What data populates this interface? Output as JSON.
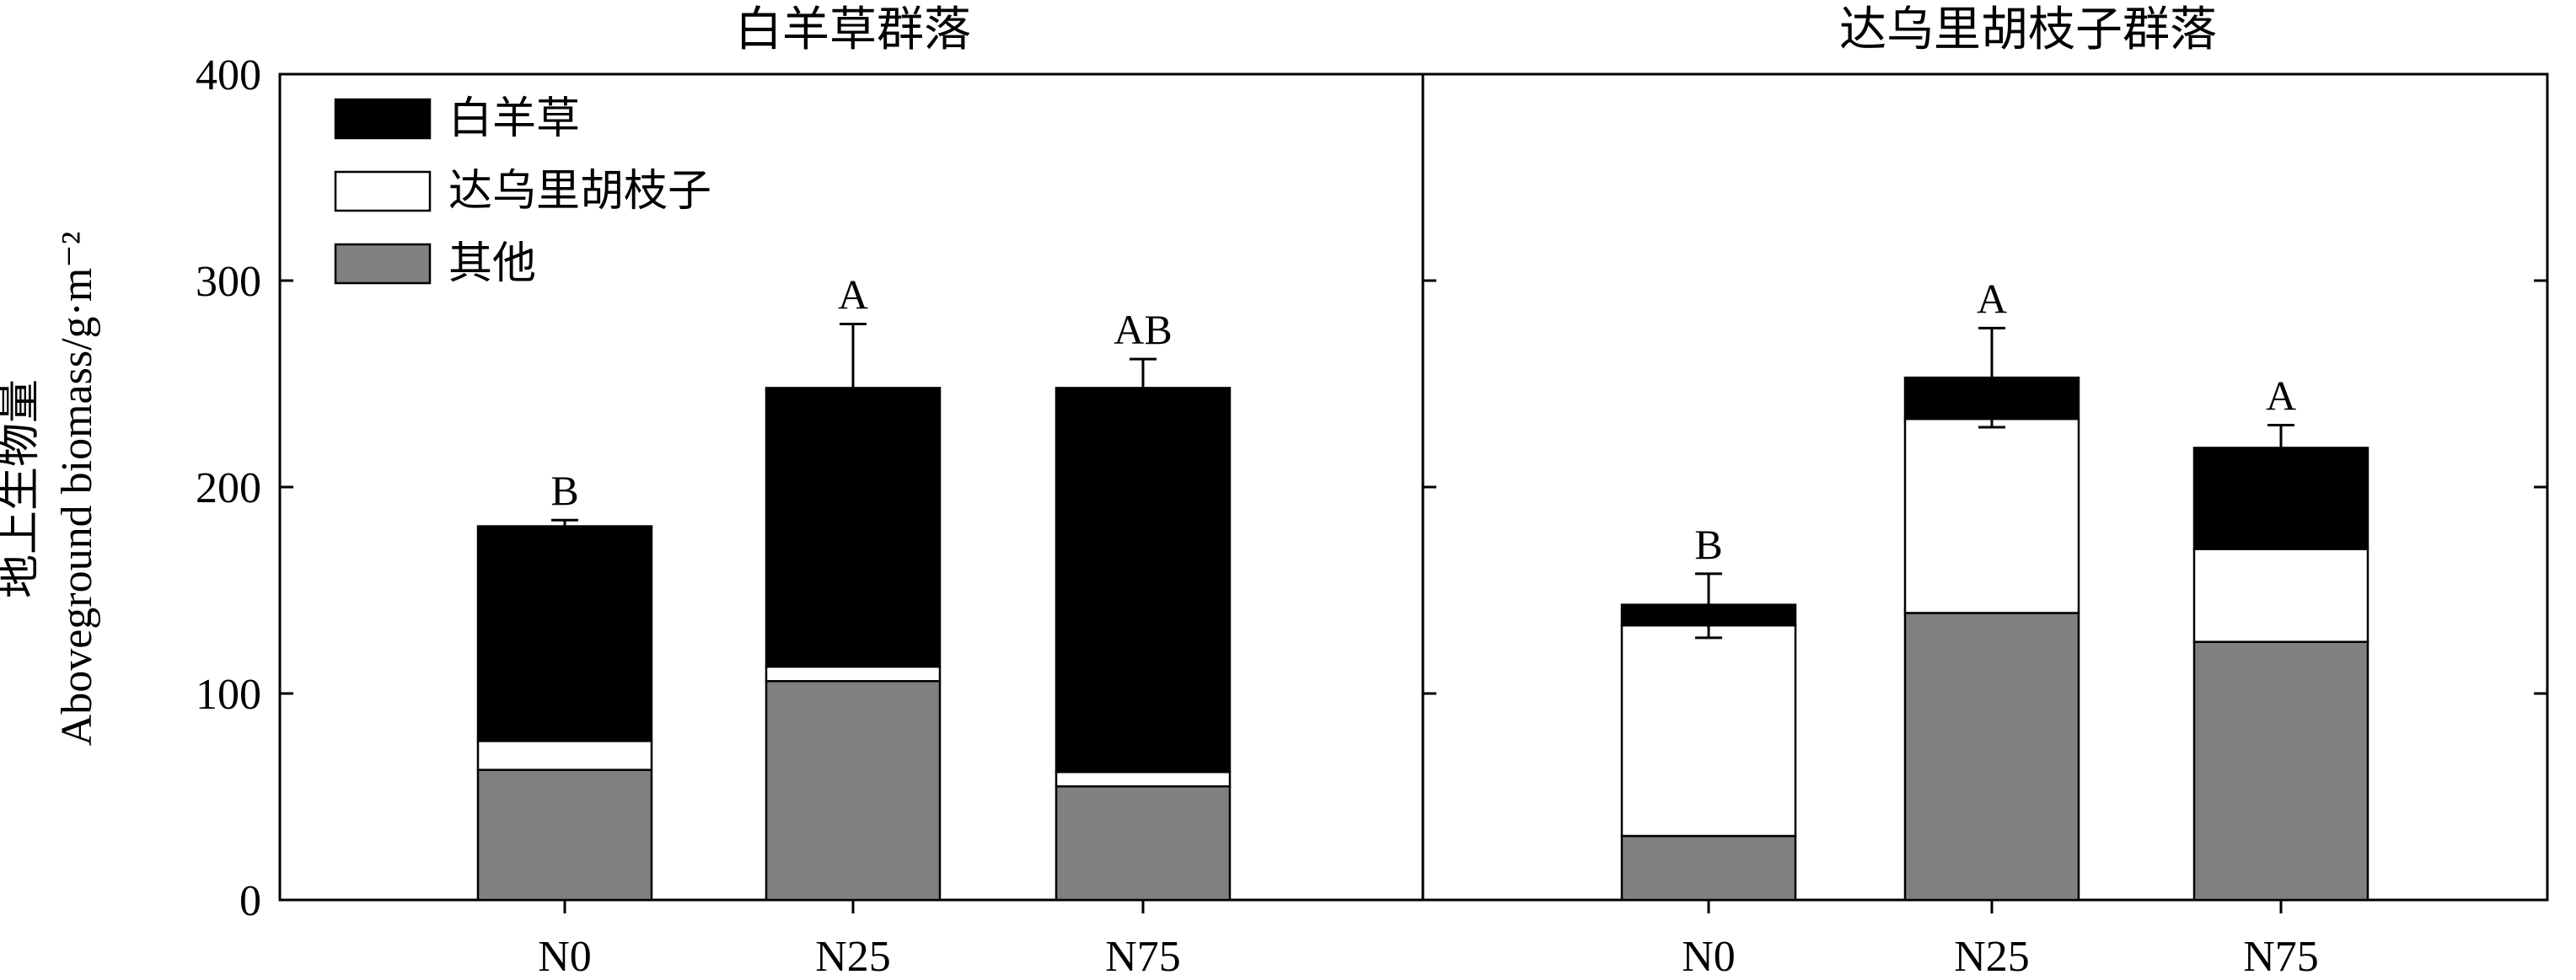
{
  "chart_data": {
    "type": "bar",
    "stacked": true,
    "ylabel_zh": "地上生物量",
    "ylabel_en": "Aboveground biomass/g·m⁻²",
    "ylim": [
      0,
      400
    ],
    "yticks": [
      "0",
      "100",
      "200",
      "300",
      "400"
    ],
    "categories": [
      "N0",
      "N25",
      "N75"
    ],
    "series_colors": [
      "#000000",
      "#ffffff",
      "#808080"
    ],
    "legend": [
      "白羊草",
      "达乌里胡枝子",
      "其他"
    ],
    "legend_position": "top-left",
    "panels": [
      {
        "title": "白羊草群落",
        "series": [
          {
            "name": "其他",
            "values": [
              63,
              106,
              55
            ]
          },
          {
            "name": "达乌里胡枝子",
            "values": [
              14,
              7,
              7
            ]
          },
          {
            "name": "白羊草",
            "values": [
              104,
              135,
              186
            ]
          }
        ],
        "totals": [
          181,
          248,
          248
        ],
        "error_upper": [
          184,
          279,
          262
        ],
        "error_lower": [
          null,
          null,
          null
        ],
        "significance": [
          "B",
          "A",
          "AB"
        ]
      },
      {
        "title": "达乌里胡枝子群落",
        "series": [
          {
            "name": "其他",
            "values": [
              31,
              139,
              125
            ]
          },
          {
            "name": "达乌里胡枝子",
            "values": [
              102,
              94,
              45
            ]
          },
          {
            "name": "白羊草",
            "values": [
              10,
              20,
              49
            ]
          }
        ],
        "totals": [
          143,
          253,
          219
        ],
        "error_upper": [
          158,
          277,
          230
        ],
        "error_lower": [
          127,
          229,
          null
        ],
        "significance": [
          "B",
          "A",
          "A"
        ]
      }
    ]
  }
}
